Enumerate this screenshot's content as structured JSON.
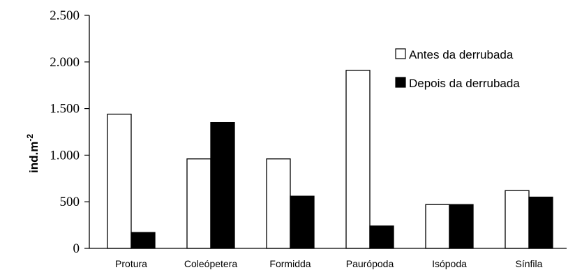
{
  "chart_data": {
    "type": "bar",
    "categories": [
      "Protura",
      "Coleópetera",
      "Formidda",
      "Paurópoda",
      "Isópoda",
      "Sínfila"
    ],
    "series": [
      {
        "name": "Antes da derrubada",
        "values": [
          1440,
          960,
          960,
          1910,
          470,
          620
        ],
        "color": "#ffffff"
      },
      {
        "name": "Depois da derrubada",
        "values": [
          170,
          1350,
          560,
          240,
          470,
          550
        ],
        "color": "#000000"
      }
    ],
    "ylabel": "ind.m",
    "ylabel_superscript": "-2",
    "yticks": [
      0,
      500,
      1000,
      1500,
      2000,
      2500
    ],
    "ytick_labels": [
      "0",
      "500",
      "1.000",
      "1.500",
      "2.000",
      "2.500"
    ],
    "ylim": [
      0,
      2500
    ],
    "grid": false,
    "legend_position": "top-right"
  }
}
